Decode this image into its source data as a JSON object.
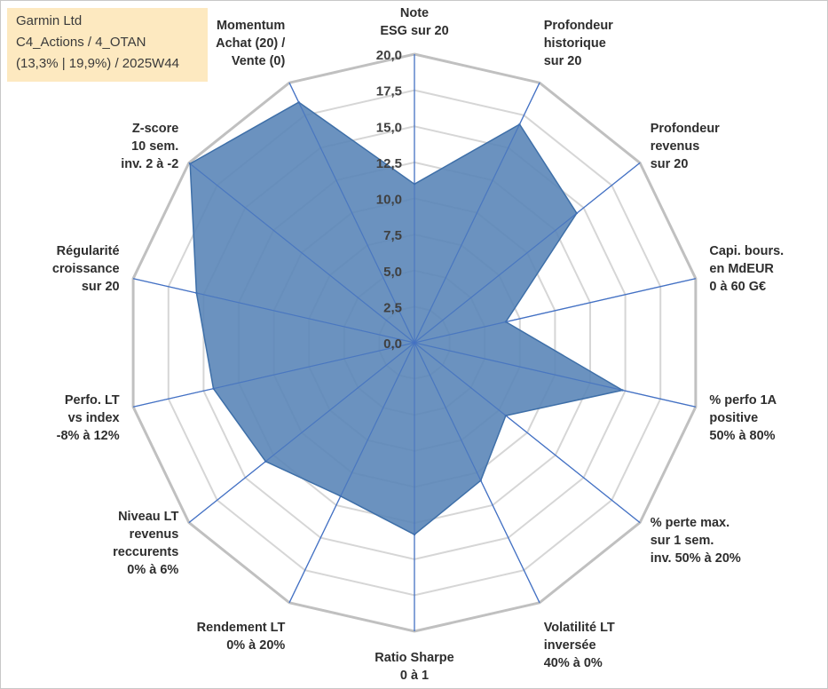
{
  "title_box": {
    "line1": "Garmin Ltd",
    "line2": "C4_Actions / 4_OTAN",
    "line3": "(13,3% | 19,9%) / 2025W44"
  },
  "colors": {
    "fill": "#5b86b8",
    "stroke": "#3e6fa8",
    "grid_outer": "#c0c0c0",
    "grid_inner": "#d6d6d6",
    "spoke": "#4472c4",
    "title_bg": "#fde9c0"
  },
  "chart_data": {
    "type": "radar",
    "title": "",
    "rmin": 0,
    "rmax": 20,
    "ticks": [
      "0,0",
      "2,5",
      "5,0",
      "7,5",
      "10,0",
      "12,5",
      "15,0",
      "17,5",
      "20,0"
    ],
    "categories": [
      [
        "Note",
        "ESG sur 20"
      ],
      [
        "Profondeur",
        "historique",
        "sur 20"
      ],
      [
        "Profondeur",
        "revenus",
        "sur 20"
      ],
      [
        "Capi. bours.",
        "en MdEUR",
        "0 à 60 G€"
      ],
      [
        "% perfo 1A",
        "positive",
        "50% à 80%"
      ],
      [
        "% perte max.",
        "sur 1 sem.",
        "inv. 50% à 20%"
      ],
      [
        "Volatilité LT",
        "inversée",
        "40% à 0%"
      ],
      [
        "Ratio Sharpe",
        "0 à 1"
      ],
      [
        "Rendement LT",
        "0% à 20%"
      ],
      [
        "Niveau LT",
        "revenus",
        "reccurents",
        "0% à 6%"
      ],
      [
        "Perfo. LT",
        "vs index",
        "-8% à 12%"
      ],
      [
        "Régularité",
        "croissance",
        "sur 20"
      ],
      [
        "Z-score",
        "10 sem.",
        "inv. 2 à -2"
      ],
      [
        "Momentum",
        "Achat (20) /",
        "Vente (0)"
      ]
    ],
    "series": [
      {
        "name": "Garmin Ltd",
        "values": [
          11,
          16.8,
          14.4,
          6.5,
          14.8,
          8.1,
          10.6,
          13.3,
          11.8,
          13.2,
          14.3,
          15.5,
          19.9,
          18.5
        ]
      }
    ]
  }
}
